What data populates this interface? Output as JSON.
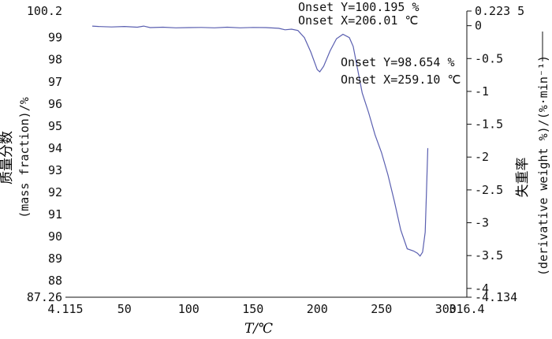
{
  "chart_data": {
    "type": "line",
    "xlabel": "T/℃",
    "ylabel_left": "质量分数",
    "ylabel_left_sub": "(mass fraction)/%",
    "ylabel_right": "失重率",
    "ylabel_right_sub": "(derivative weight %)/(%·min⁻¹)",
    "x_ticks": [
      "4.115",
      "50",
      "100",
      "150",
      "200",
      "250",
      "300",
      "316.4"
    ],
    "y_left_ticks": [
      "100.2",
      "99",
      "98",
      "97",
      "96",
      "95",
      "94",
      "93",
      "92",
      "91",
      "90",
      "89",
      "88",
      "87.26"
    ],
    "y_right_ticks": [
      "0.223 5",
      "0",
      "-0.5",
      "-1",
      "-1.5",
      "-2",
      "-2.5",
      "-3",
      "-3.5",
      "-4",
      "-4.134"
    ],
    "xlim": [
      4.115,
      316.4
    ],
    "ylim_left": [
      87.26,
      100.2
    ],
    "ylim_right": [
      -4.134,
      0.2235
    ],
    "annotations": [
      {
        "line1": "Onset Y=100.195 %",
        "line2": "Onset X=206.01 ℃"
      },
      {
        "line1": "Onset Y=98.654 %",
        "line2": "Onset X=259.10 ℃"
      }
    ],
    "series": [
      {
        "x": [
          25,
          30,
          40,
          50,
          60,
          65,
          70,
          80,
          90,
          100,
          110,
          120,
          130,
          140,
          150,
          160,
          170,
          175,
          180,
          185,
          190,
          195,
          200,
          202,
          205,
          210,
          215,
          220,
          225,
          228,
          232,
          235,
          240,
          245,
          250,
          255,
          260,
          265,
          270,
          275,
          278,
          280,
          282,
          284,
          285,
          286
        ],
        "y": [
          99.52,
          99.5,
          99.48,
          99.5,
          99.47,
          99.52,
          99.45,
          99.47,
          99.44,
          99.45,
          99.46,
          99.44,
          99.47,
          99.44,
          99.46,
          99.45,
          99.42,
          99.35,
          99.38,
          99.32,
          99.0,
          98.35,
          97.55,
          97.45,
          97.7,
          98.4,
          98.95,
          99.15,
          99.0,
          98.6,
          97.4,
          96.5,
          95.6,
          94.6,
          93.8,
          92.8,
          91.6,
          90.3,
          89.45,
          89.35,
          89.25,
          89.12,
          89.3,
          90.2,
          92.0,
          94.0
        ]
      }
    ],
    "grid": false
  }
}
